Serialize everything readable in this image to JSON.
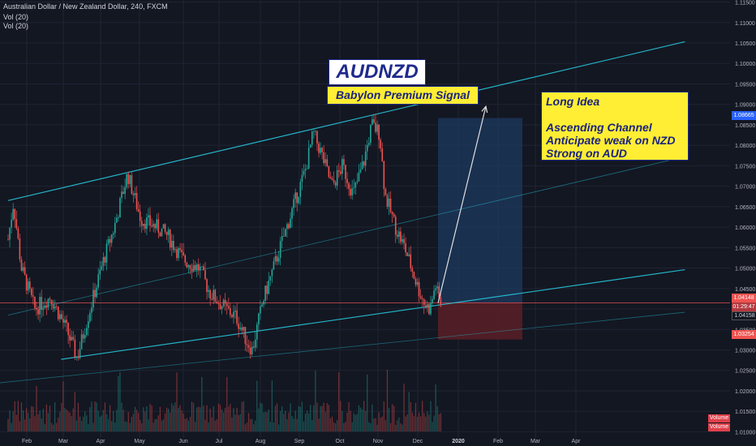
{
  "header": {
    "title": "Australian Dollar / New Zealand Dollar, 240, FXCM",
    "indicator1": "Vol (20)",
    "indicator2": "Vol (20)"
  },
  "annotations": {
    "ticker": "AUDNZD",
    "signal": "Babylon Premium Signal",
    "idea_lines": [
      "Long Idea",
      "",
      "Ascending Channel",
      "Anticipate weak on NZD",
      "Strong on AUD"
    ]
  },
  "price_tags": {
    "current": "1.08665",
    "entry": "1.04148",
    "timer": "01:29:47",
    "last": "1.04158",
    "stop": "1.03254"
  },
  "volume_tags": [
    "Volume",
    "Volume"
  ],
  "colors": {
    "background": "#131722",
    "bull": "#26a69a",
    "bear": "#ef5350",
    "channel": "#26c6da",
    "target_zone": "#1e3a5f",
    "stop_zone": "#5a1e26",
    "note_fill": "#ffee33",
    "note_text": "#1a237e"
  },
  "chart_data": {
    "type": "candlestick",
    "symbol": "AUDNZD",
    "x_ticks": [
      "Feb",
      "Mar",
      "Apr",
      "May",
      "Jun",
      "Jul",
      "Aug",
      "Sep",
      "Oct",
      "Nov",
      "Dec",
      "2020",
      "Feb",
      "Mar",
      "Apr"
    ],
    "y_ticks": [
      "1.11500",
      "1.11000",
      "1.10500",
      "1.10000",
      "1.09500",
      "1.09000",
      "1.08500",
      "1.08000",
      "1.07500",
      "1.07000",
      "1.06500",
      "1.06000",
      "1.05500",
      "1.05000",
      "1.04500",
      "1.04000",
      "1.03500",
      "1.03000",
      "1.02500",
      "1.02000",
      "1.01500",
      "1.01000"
    ],
    "ylim": [
      1.0085,
      1.1155
    ],
    "price_path": [
      [
        0,
        1.057
      ],
      [
        0.02,
        1.066
      ],
      [
        0.05,
        1.05
      ],
      [
        0.1,
        1.04
      ],
      [
        0.16,
        1.043
      ],
      [
        0.22,
        1.035
      ],
      [
        0.26,
        1.028
      ],
      [
        0.3,
        1.038
      ],
      [
        0.36,
        1.052
      ],
      [
        0.4,
        1.06
      ],
      [
        0.45,
        1.073
      ],
      [
        0.5,
        1.062
      ],
      [
        0.56,
        1.06
      ],
      [
        0.6,
        1.058
      ],
      [
        0.66,
        1.052
      ],
      [
        0.72,
        1.05
      ],
      [
        0.76,
        1.044
      ],
      [
        0.82,
        1.04
      ],
      [
        0.86,
        1.038
      ],
      [
        0.9,
        1.032
      ],
      [
        0.92,
        1.03
      ],
      [
        0.96,
        1.042
      ],
      [
        1.0,
        1.05
      ],
      [
        1.04,
        1.058
      ],
      [
        1.08,
        1.066
      ],
      [
        1.12,
        1.074
      ],
      [
        1.15,
        1.083
      ],
      [
        1.18,
        1.078
      ],
      [
        1.22,
        1.07
      ],
      [
        1.26,
        1.075
      ],
      [
        1.3,
        1.068
      ],
      [
        1.34,
        1.076
      ],
      [
        1.37,
        1.085
      ],
      [
        1.4,
        1.083
      ],
      [
        1.42,
        1.068
      ],
      [
        1.46,
        1.06
      ],
      [
        1.5,
        1.054
      ],
      [
        1.54,
        1.046
      ],
      [
        1.57,
        1.041
      ],
      [
        1.59,
        1.04
      ],
      [
        1.61,
        1.046
      ],
      [
        1.62,
        1.043
      ],
      [
        1.63,
        1.0415
      ]
    ],
    "channel_upper": [
      [
        0,
        1.0665
      ],
      [
        2.55,
        1.1053
      ]
    ],
    "channel_mid": [
      [
        0,
        1.0385
      ],
      [
        2.55,
        1.0772
      ]
    ],
    "channel_lower": [
      [
        0.2,
        1.0277
      ],
      [
        2.55,
        1.0496
      ]
    ],
    "channel_bottom": [
      [
        -0.1,
        1.0215
      ],
      [
        2.55,
        1.0392
      ]
    ],
    "entry": 1.04148,
    "target": 1.08665,
    "stop": 1.03254,
    "arrow": [
      [
        1.62,
        1.0415
      ],
      [
        1.8,
        1.0895
      ]
    ]
  }
}
